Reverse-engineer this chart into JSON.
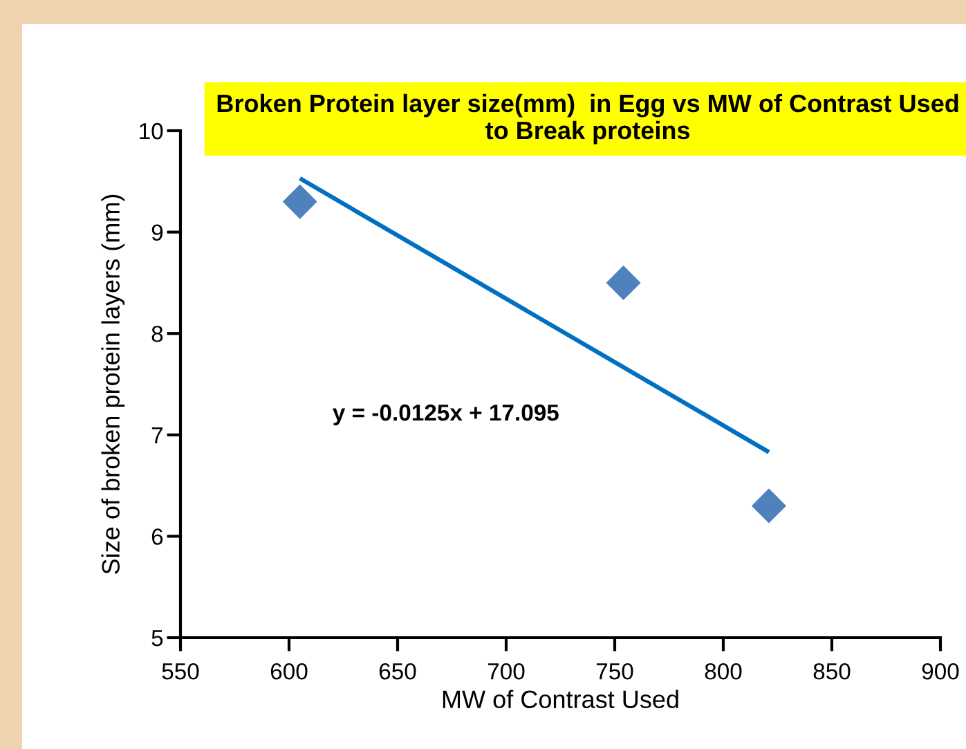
{
  "chart_data": {
    "type": "scatter",
    "title": "Broken Protein layer size(mm)  in Egg vs MW of Contrast Used to Break proteins",
    "xlabel": "MW of Contrast Used",
    "ylabel": "Size of broken protein layers (mm)",
    "series": [
      {
        "color": "#4f81bd",
        "x": [
          605,
          754,
          821
        ],
        "values": [
          9.3,
          8.5,
          6.3
        ],
        "marker": "diamond"
      },
      {
        "type": "line",
        "color": "#0070c0",
        "x": [
          605,
          821
        ],
        "values": [
          9.53,
          6.83
        ],
        "marker": "none",
        "line_style": "solid"
      }
    ],
    "xlim": [
      550,
      900
    ],
    "xticks": [
      550,
      600,
      650,
      700,
      750,
      800,
      850,
      900
    ],
    "ylim": [
      5,
      10
    ],
    "yticks": [
      5,
      6,
      7,
      8,
      9,
      10
    ],
    "grid": false,
    "legend": false,
    "annotations": [
      "y = -0.0125x + 17.095"
    ]
  }
}
